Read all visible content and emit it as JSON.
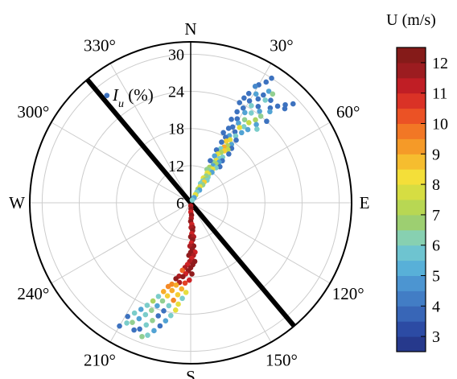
{
  "chart_data": {
    "type": "scatter",
    "projection": "polar",
    "angle_direction": "clockwise",
    "zero_angle": "north",
    "radial_label": "I_u (%)",
    "radial_label_main": "I",
    "radial_label_sub": "u",
    "radial_label_unit": " (%)",
    "radial_range": [
      6,
      32
    ],
    "radial_ticks": [
      6,
      12,
      18,
      24,
      30
    ],
    "radial_tick_labels": [
      "6",
      "12",
      "18",
      "24",
      "30"
    ],
    "angle_tick_labels": [
      {
        "angle": 0,
        "label": "N"
      },
      {
        "angle": 30,
        "label": "30°"
      },
      {
        "angle": 60,
        "label": "60°"
      },
      {
        "angle": 90,
        "label": "E"
      },
      {
        "angle": 120,
        "label": "120°"
      },
      {
        "angle": 150,
        "label": "150°"
      },
      {
        "angle": 180,
        "label": "S"
      },
      {
        "angle": 210,
        "label": "210°"
      },
      {
        "angle": 240,
        "label": "240°"
      },
      {
        "angle": 270,
        "label": "W"
      },
      {
        "angle": 300,
        "label": "300°"
      },
      {
        "angle": 330,
        "label": "330°"
      }
    ],
    "grid": true,
    "reference_line_angles": [
      140,
      320
    ],
    "colorbar": {
      "title": "U (m/s)",
      "range": [
        2.5,
        12.5
      ],
      "ticks": [
        3,
        4,
        5,
        6,
        7,
        8,
        9,
        10,
        11,
        12
      ],
      "tick_labels": [
        "3",
        "4",
        "5",
        "6",
        "7",
        "8",
        "9",
        "10",
        "11",
        "12"
      ],
      "colormap": [
        "#23317f",
        "#2b49a3",
        "#3c6fbd",
        "#4a8fcf",
        "#5ab6d9",
        "#7fd0c8",
        "#9fcf6c",
        "#c6db46",
        "#f4e13a",
        "#f7b12b",
        "#f37f25",
        "#ea4a25",
        "#cc1f26",
        "#9a1c20",
        "#7a1a16"
      ]
    },
    "points": [
      {
        "theta": 322,
        "r": 28,
        "u": 4
      },
      {
        "theta": 33,
        "r": 30,
        "u": 4
      },
      {
        "theta": 32,
        "r": 29,
        "u": 4
      },
      {
        "theta": 35,
        "r": 28,
        "u": 5
      },
      {
        "theta": 37,
        "r": 28,
        "u": 6.5
      },
      {
        "theta": 30,
        "r": 28,
        "u": 4
      },
      {
        "theta": 29,
        "r": 27.5,
        "u": 4.5
      },
      {
        "theta": 34,
        "r": 27,
        "u": 4
      },
      {
        "theta": 38,
        "r": 27,
        "u": 4
      },
      {
        "theta": 31,
        "r": 26.5,
        "u": 5
      },
      {
        "theta": 36,
        "r": 26.5,
        "u": 6
      },
      {
        "theta": 28,
        "r": 26,
        "u": 4
      },
      {
        "theta": 33,
        "r": 26,
        "u": 4
      },
      {
        "theta": 40,
        "r": 26,
        "u": 4
      },
      {
        "theta": 42,
        "r": 27,
        "u": 4
      },
      {
        "theta": 44,
        "r": 28,
        "u": 4
      },
      {
        "theta": 46,
        "r": 29,
        "u": 4
      },
      {
        "theta": 45,
        "r": 27.5,
        "u": 4
      },
      {
        "theta": 41,
        "r": 25.5,
        "u": 5
      },
      {
        "theta": 35,
        "r": 25,
        "u": 4
      },
      {
        "theta": 30,
        "r": 25,
        "u": 4
      },
      {
        "theta": 27,
        "r": 25,
        "u": 4
      },
      {
        "theta": 32,
        "r": 24.5,
        "u": 6
      },
      {
        "theta": 37,
        "r": 24.5,
        "u": 5
      },
      {
        "theta": 39,
        "r": 24,
        "u": 6.5
      },
      {
        "theta": 43,
        "r": 24,
        "u": 4
      },
      {
        "theta": 26,
        "r": 24,
        "u": 4
      },
      {
        "theta": 29,
        "r": 23.5,
        "u": 4
      },
      {
        "theta": 34,
        "r": 23.5,
        "u": 6
      },
      {
        "theta": 38,
        "r": 23,
        "u": 7
      },
      {
        "theta": 31,
        "r": 23,
        "u": 5
      },
      {
        "theta": 40,
        "r": 22.5,
        "u": 5
      },
      {
        "theta": 27,
        "r": 22.5,
        "u": 4
      },
      {
        "theta": 33,
        "r": 22,
        "u": 6.5
      },
      {
        "theta": 36,
        "r": 22,
        "u": 7.5
      },
      {
        "theta": 42,
        "r": 22,
        "u": 6
      },
      {
        "theta": 29,
        "r": 21.5,
        "u": 4
      },
      {
        "theta": 35,
        "r": 21,
        "u": 6
      },
      {
        "theta": 31,
        "r": 21,
        "u": 5
      },
      {
        "theta": 38,
        "r": 21,
        "u": 5
      },
      {
        "theta": 26,
        "r": 21,
        "u": 4
      },
      {
        "theta": 33,
        "r": 20.5,
        "u": 8
      },
      {
        "theta": 29,
        "r": 20,
        "u": 4
      },
      {
        "theta": 36,
        "r": 20,
        "u": 5
      },
      {
        "theta": 32,
        "r": 19.5,
        "u": 4
      },
      {
        "theta": 27,
        "r": 19.5,
        "u": 4
      },
      {
        "theta": 34,
        "r": 19,
        "u": 6
      },
      {
        "theta": 30,
        "r": 18.5,
        "u": 5
      },
      {
        "theta": 36,
        "r": 18.5,
        "u": 4
      },
      {
        "theta": 25,
        "r": 18.5,
        "u": 4
      },
      {
        "theta": 32,
        "r": 18,
        "u": 8
      },
      {
        "theta": 28,
        "r": 18,
        "u": 4
      },
      {
        "theta": 35,
        "r": 17.5,
        "u": 5
      },
      {
        "theta": 30,
        "r": 17.5,
        "u": 8.5
      },
      {
        "theta": 33,
        "r": 17,
        "u": 7
      },
      {
        "theta": 27,
        "r": 17,
        "u": 4
      },
      {
        "theta": 37,
        "r": 17,
        "u": 4
      },
      {
        "theta": 31,
        "r": 16.5,
        "u": 9
      },
      {
        "theta": 35,
        "r": 16.5,
        "u": 7.5
      },
      {
        "theta": 29,
        "r": 16,
        "u": 6
      },
      {
        "theta": 33,
        "r": 16,
        "u": 8.5
      },
      {
        "theta": 38,
        "r": 16,
        "u": 4
      },
      {
        "theta": 26,
        "r": 15.5,
        "u": 4
      },
      {
        "theta": 31,
        "r": 15.5,
        "u": 7
      },
      {
        "theta": 35,
        "r": 15,
        "u": 6
      },
      {
        "theta": 29,
        "r": 15,
        "u": 8
      },
      {
        "theta": 33,
        "r": 14.5,
        "u": 6
      },
      {
        "theta": 37,
        "r": 14.5,
        "u": 4
      },
      {
        "theta": 27,
        "r": 14.5,
        "u": 5
      },
      {
        "theta": 31,
        "r": 14,
        "u": 8
      },
      {
        "theta": 35,
        "r": 14,
        "u": 5
      },
      {
        "theta": 29,
        "r": 13.5,
        "u": 6.5
      },
      {
        "theta": 33,
        "r": 13.5,
        "u": 7
      },
      {
        "theta": 39,
        "r": 13.5,
        "u": 4
      },
      {
        "theta": 25,
        "r": 13.5,
        "u": 4
      },
      {
        "theta": 31,
        "r": 13,
        "u": 5
      },
      {
        "theta": 36,
        "r": 13,
        "u": 6
      },
      {
        "theta": 28,
        "r": 12.5,
        "u": 7
      },
      {
        "theta": 33,
        "r": 12.5,
        "u": 8
      },
      {
        "theta": 30,
        "r": 12,
        "u": 6
      },
      {
        "theta": 35,
        "r": 12,
        "u": 5
      },
      {
        "theta": 26,
        "r": 12,
        "u": 6.5
      },
      {
        "theta": 32,
        "r": 11.5,
        "u": 7.5
      },
      {
        "theta": 29,
        "r": 11.5,
        "u": 8
      },
      {
        "theta": 34,
        "r": 11,
        "u": 6
      },
      {
        "theta": 30,
        "r": 11,
        "u": 6.5
      },
      {
        "theta": 27,
        "r": 10.5,
        "u": 8
      },
      {
        "theta": 32,
        "r": 10.5,
        "u": 7
      },
      {
        "theta": 36,
        "r": 10.5,
        "u": 6
      },
      {
        "theta": 29,
        "r": 10,
        "u": 6
      },
      {
        "theta": 33,
        "r": 10,
        "u": 8.5
      },
      {
        "theta": 31,
        "r": 9.5,
        "u": 7.5
      },
      {
        "theta": 27,
        "r": 9.5,
        "u": 6
      },
      {
        "theta": 34,
        "r": 9.5,
        "u": 6.5
      },
      {
        "theta": 30,
        "r": 9,
        "u": 8
      },
      {
        "theta": 32,
        "r": 8.5,
        "u": 6
      },
      {
        "theta": 28,
        "r": 8.5,
        "u": 7
      },
      {
        "theta": 35,
        "r": 8.5,
        "u": 5
      },
      {
        "theta": 30,
        "r": 8,
        "u": 6
      },
      {
        "theta": 33,
        "r": 7.5,
        "u": 7
      },
      {
        "theta": 29,
        "r": 7.5,
        "u": 8
      },
      {
        "theta": 31,
        "r": 7,
        "u": 6
      },
      {
        "theta": 34,
        "r": 7,
        "u": 5
      },
      {
        "theta": 30,
        "r": 6.5,
        "u": 6
      },
      {
        "theta": 178,
        "r": 6.5,
        "u": 11.5
      },
      {
        "theta": 177,
        "r": 7,
        "u": 12
      },
      {
        "theta": 179,
        "r": 7.5,
        "u": 11
      },
      {
        "theta": 176,
        "r": 8,
        "u": 12
      },
      {
        "theta": 178,
        "r": 8.5,
        "u": 11.5
      },
      {
        "theta": 180,
        "r": 9,
        "u": 12
      },
      {
        "theta": 177,
        "r": 9.5,
        "u": 11
      },
      {
        "theta": 175,
        "r": 10,
        "u": 12
      },
      {
        "theta": 179,
        "r": 10,
        "u": 11.5
      },
      {
        "theta": 176,
        "r": 10.5,
        "u": 12
      },
      {
        "theta": 178,
        "r": 11,
        "u": 11
      },
      {
        "theta": 180,
        "r": 11.5,
        "u": 12
      },
      {
        "theta": 175,
        "r": 11.5,
        "u": 11.5
      },
      {
        "theta": 177,
        "r": 12,
        "u": 12
      },
      {
        "theta": 179,
        "r": 12.5,
        "u": 11
      },
      {
        "theta": 176,
        "r": 13,
        "u": 12
      },
      {
        "theta": 181,
        "r": 13,
        "u": 11.5
      },
      {
        "theta": 178,
        "r": 13.5,
        "u": 12
      },
      {
        "theta": 175,
        "r": 14,
        "u": 11
      },
      {
        "theta": 180,
        "r": 14,
        "u": 12
      },
      {
        "theta": 177,
        "r": 14.5,
        "u": 11.5
      },
      {
        "theta": 182,
        "r": 14.5,
        "u": 12
      },
      {
        "theta": 179,
        "r": 15,
        "u": 11
      },
      {
        "theta": 176,
        "r": 15.5,
        "u": 12
      },
      {
        "theta": 181,
        "r": 15.5,
        "u": 11.5
      },
      {
        "theta": 178,
        "r": 16,
        "u": 12
      },
      {
        "theta": 183,
        "r": 16,
        "u": 11
      },
      {
        "theta": 180,
        "r": 16.5,
        "u": 12
      },
      {
        "theta": 185,
        "r": 16.5,
        "u": 11.5
      },
      {
        "theta": 182,
        "r": 17,
        "u": 12
      },
      {
        "theta": 187,
        "r": 17,
        "u": 10
      },
      {
        "theta": 184,
        "r": 17.5,
        "u": 11
      },
      {
        "theta": 179,
        "r": 17.5,
        "u": 12
      },
      {
        "theta": 189,
        "r": 18,
        "u": 11.5
      },
      {
        "theta": 186,
        "r": 18,
        "u": 12
      },
      {
        "theta": 181,
        "r": 18.5,
        "u": 11
      },
      {
        "theta": 191,
        "r": 18.5,
        "u": 12
      },
      {
        "theta": 188,
        "r": 19,
        "u": 11.5
      },
      {
        "theta": 184,
        "r": 19,
        "u": 10.5
      },
      {
        "theta": 193,
        "r": 19.5,
        "u": 9.5
      },
      {
        "theta": 190,
        "r": 19.5,
        "u": 9
      },
      {
        "theta": 186,
        "r": 20,
        "u": 9
      },
      {
        "theta": 195,
        "r": 20,
        "u": 9.5
      },
      {
        "theta": 183,
        "r": 20.5,
        "u": 8
      },
      {
        "theta": 192,
        "r": 20.5,
        "u": 9
      },
      {
        "theta": 188,
        "r": 21,
        "u": 8.5
      },
      {
        "theta": 197,
        "r": 21,
        "u": 9
      },
      {
        "theta": 185,
        "r": 21.5,
        "u": 6
      },
      {
        "theta": 194,
        "r": 21.5,
        "u": 8.5
      },
      {
        "theta": 190,
        "r": 22,
        "u": 9.5
      },
      {
        "theta": 199,
        "r": 22,
        "u": 6
      },
      {
        "theta": 187,
        "r": 22.5,
        "u": 8
      },
      {
        "theta": 196,
        "r": 22.5,
        "u": 6.5
      },
      {
        "theta": 201,
        "r": 23,
        "u": 7
      },
      {
        "theta": 192,
        "r": 23,
        "u": 6
      },
      {
        "theta": 198,
        "r": 23.5,
        "u": 5
      },
      {
        "theta": 188,
        "r": 23.5,
        "u": 8
      },
      {
        "theta": 203,
        "r": 24,
        "u": 6
      },
      {
        "theta": 194,
        "r": 24,
        "u": 4
      },
      {
        "theta": 200,
        "r": 24.5,
        "u": 6.5
      },
      {
        "theta": 190,
        "r": 24.5,
        "u": 6
      },
      {
        "theta": 205,
        "r": 25,
        "u": 5
      },
      {
        "theta": 196,
        "r": 25,
        "u": 4
      },
      {
        "theta": 202,
        "r": 25.5,
        "u": 6
      },
      {
        "theta": 192,
        "r": 25.5,
        "u": 5
      },
      {
        "theta": 207,
        "r": 26,
        "u": 6
      },
      {
        "theta": 198,
        "r": 26,
        "u": 6.5
      },
      {
        "theta": 204,
        "r": 26.5,
        "u": 5
      },
      {
        "theta": 194,
        "r": 26.5,
        "u": 4
      },
      {
        "theta": 209,
        "r": 27,
        "u": 4
      },
      {
        "theta": 200,
        "r": 27,
        "u": 6
      },
      {
        "theta": 206,
        "r": 27.5,
        "u": 6.5
      },
      {
        "theta": 196,
        "r": 27.5,
        "u": 5
      },
      {
        "theta": 202,
        "r": 28,
        "u": 4
      },
      {
        "theta": 208,
        "r": 28,
        "u": 6
      },
      {
        "theta": 198,
        "r": 28.5,
        "u": 6
      },
      {
        "theta": 204,
        "r": 28.5,
        "u": 4
      },
      {
        "theta": 210,
        "r": 29,
        "u": 4
      },
      {
        "theta": 200,
        "r": 29,
        "u": 6.5
      }
    ]
  }
}
